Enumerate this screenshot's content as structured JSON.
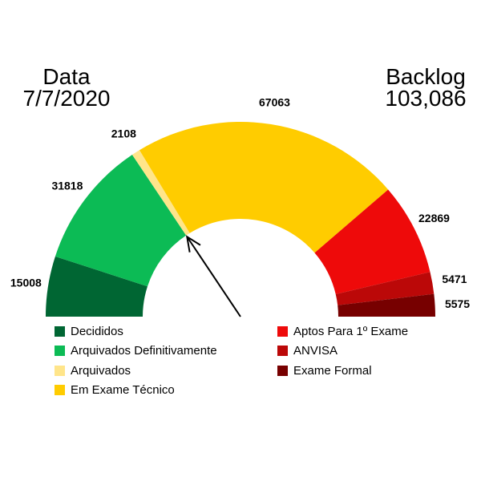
{
  "date_block": {
    "label": "Data",
    "value": "7/7/2020"
  },
  "backlog_block": {
    "label": "Backlog",
    "value": "103,086"
  },
  "chart_data": {
    "type": "gauge",
    "title": "",
    "segments": [
      {
        "name": "Decididos",
        "value": 15008,
        "label": "15008",
        "color": "#006633"
      },
      {
        "name": "Arquivados Definitivamente",
        "value": 31818,
        "label": "31818",
        "color": "#0CBB55"
      },
      {
        "name": "Arquivados",
        "value": 2108,
        "label": "2108",
        "color": "#FFE58A"
      },
      {
        "name": "Em Exame Técnico",
        "value": 67063,
        "label": "67063",
        "color": "#FFCC00"
      },
      {
        "name": "Aptos Para 1º Exame",
        "value": 22869,
        "label": "22869",
        "color": "#EE0A0A"
      },
      {
        "name": "ANVISA",
        "value": 5471,
        "label": "5471",
        "color": "#BB0808"
      },
      {
        "name": "Exame Formal",
        "value": 5575,
        "label": "5575",
        "color": "#770000"
      }
    ],
    "legend_left": [
      "Decididos",
      "Arquivados Definitivamente",
      "Arquivados",
      "Em Exame Técnico"
    ],
    "legend_right": [
      "Aptos Para 1º Exame",
      "ANVISA",
      "Exame Formal"
    ],
    "needle_value": 46826
  }
}
